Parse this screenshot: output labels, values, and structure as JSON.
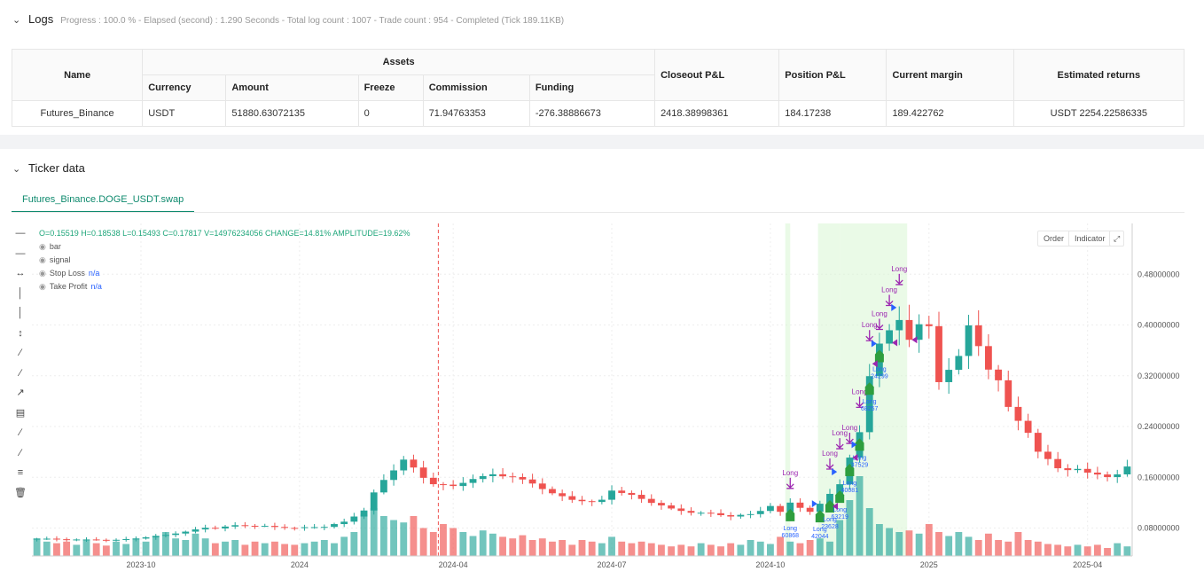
{
  "logs": {
    "title": "Logs",
    "summary": "Progress : 100.0 % - Elapsed (second) : 1.290  Seconds - Total log count : 1007 - Trade count : 954 - Completed (Tick 189.11KB)"
  },
  "assets_table": {
    "group_header": "Assets",
    "headers": {
      "name": "Name",
      "currency": "Currency",
      "amount": "Amount",
      "freeze": "Freeze",
      "commission": "Commission",
      "funding": "Funding",
      "closeout": "Closeout P&L",
      "position": "Position P&L",
      "margin": "Current margin",
      "returns": "Estimated returns"
    },
    "row": {
      "name": "Futures_Binance",
      "currency": "USDT",
      "amount": "51880.63072135",
      "freeze": "0",
      "commission": "71.94763353",
      "funding": "-276.38886673",
      "closeout": "2418.38998361",
      "position": "184.17238",
      "margin": "189.422762",
      "returns": "USDT 2254.22586335"
    }
  },
  "ticker": {
    "title": "Ticker data",
    "tab_label": "Futures_Binance.DOGE_USDT.swap",
    "ohlc_line": "O=0.15519 H=0.18538 L=0.15493 C=0.17817 V=14976234056 CHANGE=14.81% AMPLITUDE=19.62%",
    "legend": {
      "bar": "bar",
      "signal": "signal",
      "stop_loss": "Stop Loss",
      "take_profit": "Take Profit",
      "na": "n/a"
    },
    "buttons": {
      "order": "Order",
      "indicator": "Indicator"
    }
  },
  "colors": {
    "up": "#26a69a",
    "down": "#ef5350",
    "long": "#9c27b0",
    "accent": "#0f8a6e",
    "fill_marker": "#2e9e3e"
  },
  "chart_data": {
    "type": "candlestick",
    "x_ticks": [
      "2023-10",
      "2024",
      "2024-04",
      "2024-07",
      "2024-10",
      "2025",
      "2025-04"
    ],
    "y_ticks": [
      "0.48000000",
      "0.40000000",
      "0.32000000",
      "0.24000000",
      "0.16000000",
      "0.08000000"
    ],
    "y_range": [
      0.036,
      0.56
    ],
    "grid": true,
    "close_path": [
      [
        0,
        0.063
      ],
      [
        4,
        0.062
      ],
      [
        8,
        0.061
      ],
      [
        10,
        0.064
      ],
      [
        13,
        0.069
      ],
      [
        15,
        0.074
      ],
      [
        17,
        0.081
      ],
      [
        18,
        0.08
      ],
      [
        20,
        0.084
      ],
      [
        23,
        0.083
      ],
      [
        26,
        0.08
      ],
      [
        29,
        0.082
      ],
      [
        31,
        0.09
      ],
      [
        33,
        0.108
      ],
      [
        34,
        0.135
      ],
      [
        35,
        0.155
      ],
      [
        37,
        0.188
      ],
      [
        38,
        0.175
      ],
      [
        39,
        0.16
      ],
      [
        40,
        0.15
      ],
      [
        42,
        0.145
      ],
      [
        44,
        0.158
      ],
      [
        46,
        0.165
      ],
      [
        48,
        0.16
      ],
      [
        50,
        0.15
      ],
      [
        52,
        0.135
      ],
      [
        54,
        0.125
      ],
      [
        56,
        0.12
      ],
      [
        57,
        0.124
      ],
      [
        58,
        0.14
      ],
      [
        60,
        0.132
      ],
      [
        62,
        0.12
      ],
      [
        64,
        0.11
      ],
      [
        66,
        0.105
      ],
      [
        68,
        0.103
      ],
      [
        70,
        0.098
      ],
      [
        72,
        0.102
      ],
      [
        73,
        0.108
      ],
      [
        74,
        0.115
      ],
      [
        75,
        0.105
      ],
      [
        76,
        0.12
      ],
      [
        77,
        0.112
      ],
      [
        78,
        0.105
      ],
      [
        79,
        0.118
      ],
      [
        80,
        0.135
      ],
      [
        81,
        0.15
      ],
      [
        82,
        0.19
      ],
      [
        83,
        0.23
      ],
      [
        84,
        0.32
      ],
      [
        85,
        0.37
      ],
      [
        86,
        0.39
      ],
      [
        87,
        0.41
      ],
      [
        88,
        0.38
      ],
      [
        89,
        0.4
      ],
      [
        90,
        0.395
      ],
      [
        91,
        0.31
      ],
      [
        92,
        0.33
      ],
      [
        93,
        0.35
      ],
      [
        94,
        0.4
      ],
      [
        95,
        0.37
      ],
      [
        96,
        0.33
      ],
      [
        97,
        0.31
      ],
      [
        98,
        0.27
      ],
      [
        99,
        0.25
      ],
      [
        100,
        0.23
      ],
      [
        101,
        0.2
      ],
      [
        102,
        0.19
      ],
      [
        103,
        0.175
      ],
      [
        104,
        0.17
      ],
      [
        105,
        0.172
      ],
      [
        106,
        0.168
      ],
      [
        107,
        0.165
      ],
      [
        108,
        0.16
      ],
      [
        109,
        0.165
      ],
      [
        110,
        0.178
      ]
    ],
    "volume": [
      0.22,
      0.18,
      0.16,
      0.18,
      0.14,
      0.2,
      0.16,
      0.13,
      0.18,
      0.15,
      0.22,
      0.18,
      0.25,
      0.3,
      0.22,
      0.2,
      0.28,
      0.22,
      0.16,
      0.18,
      0.2,
      0.14,
      0.18,
      0.16,
      0.18,
      0.15,
      0.14,
      0.16,
      0.18,
      0.2,
      0.16,
      0.24,
      0.3,
      0.52,
      0.6,
      0.5,
      0.45,
      0.42,
      0.5,
      0.35,
      0.3,
      0.4,
      0.35,
      0.3,
      0.25,
      0.32,
      0.28,
      0.24,
      0.22,
      0.26,
      0.2,
      0.22,
      0.18,
      0.2,
      0.14,
      0.2,
      0.18,
      0.16,
      0.24,
      0.18,
      0.16,
      0.18,
      0.16,
      0.14,
      0.12,
      0.14,
      0.12,
      0.16,
      0.14,
      0.12,
      0.16,
      0.14,
      0.2,
      0.18,
      0.15,
      0.24,
      0.18,
      0.16,
      0.2,
      0.22,
      0.18,
      0.45,
      0.7,
      1.0,
      0.6,
      0.4,
      0.35,
      0.3,
      0.32,
      0.28,
      0.4,
      0.3,
      0.25,
      0.3,
      0.24,
      0.2,
      0.28,
      0.2,
      0.18,
      0.3,
      0.2,
      0.18,
      0.15,
      0.14,
      0.12,
      0.14,
      0.12,
      0.14,
      0.1,
      0.16,
      0.12
    ],
    "shaded_regions": [
      [
        75.5,
        76.0
      ],
      [
        78.8,
        81.0
      ],
      [
        81.0,
        87.8
      ]
    ],
    "dashed_vline_x": 40.5,
    "annotations": {
      "long_label": "Long",
      "numbers": [
        "60868",
        "42044",
        "23628",
        "63219",
        "40081",
        "37529",
        "68257",
        "24299"
      ]
    }
  }
}
